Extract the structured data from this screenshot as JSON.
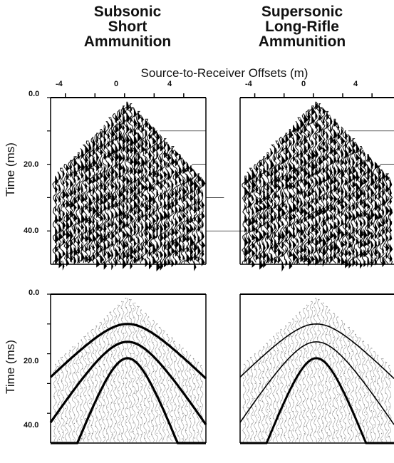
{
  "figure": {
    "columns": [
      {
        "title_lines": [
          "Subsonic",
          "Short",
          "Ammunition"
        ]
      },
      {
        "title_lines": [
          "Supersonic",
          "Long-Rifle",
          "Ammunition"
        ]
      }
    ],
    "offset_axis_title": "Source-to-Receiver Offsets (m)",
    "time_axis_label": "Time (ms)",
    "offset_ticks": [
      "-4",
      "0",
      "4"
    ],
    "time_ticks": [
      "0.0",
      "20.0",
      "40.0"
    ]
  },
  "chart_data": [
    {
      "panel": "top-left",
      "type": "seismic-shot-gather",
      "x_range_m": [
        -5,
        5.5
      ],
      "y_range_ms": [
        0,
        50
      ]
    },
    {
      "panel": "top-right",
      "type": "seismic-shot-gather",
      "x_range_m": [
        -5,
        5.5
      ],
      "y_range_ms": [
        0,
        50
      ]
    },
    {
      "panel": "bottom-left",
      "type": "seismic-shot-gather-with-hyperbolas",
      "x_range_m": [
        -5,
        5.5
      ],
      "y_range_ms": [
        0,
        50
      ],
      "hyperbola_apex_ms": [
        10,
        16,
        21.5
      ]
    },
    {
      "panel": "bottom-right",
      "type": "seismic-shot-gather-with-hyperbolas",
      "x_range_m": [
        -5,
        5.5
      ],
      "y_range_ms": [
        0,
        50
      ],
      "hyperbola_apex_ms": [
        10,
        16,
        21.5
      ]
    }
  ]
}
